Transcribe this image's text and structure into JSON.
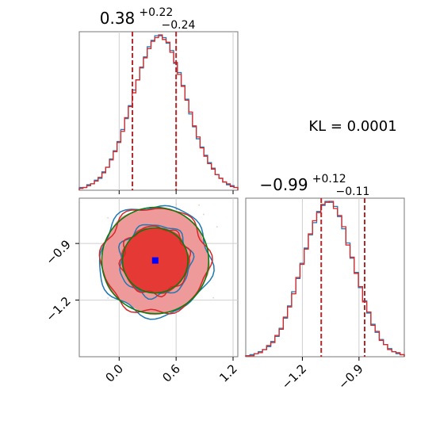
{
  "chart_data": {
    "type": "corner",
    "annotation": "KL = 0.0001",
    "params": [
      {
        "title_main": "0.38",
        "title_sup": "+0.22",
        "title_sub": "−0.24",
        "xlim": [
          -0.42,
          1.25
        ],
        "ticks": [
          0.0,
          0.6,
          1.2
        ],
        "tick_labels": [
          "0.0",
          "0.6",
          "1.2"
        ],
        "quantiles": [
          0.14,
          0.6
        ],
        "mean": 0.38,
        "sd": 0.23
      },
      {
        "title_main": "−0.99",
        "title_sup": "+0.12",
        "title_sub": "−0.11",
        "xlim": [
          -1.5,
          -0.66
        ],
        "ticks": [
          -1.2,
          -0.9
        ],
        "tick_labels": [
          "−1.2",
          "−0.9"
        ],
        "quantiles": [
          -1.1,
          -0.87
        ],
        "mean": -0.99,
        "sd": 0.115
      }
    ],
    "marginal_1": {
      "series": [
        {
          "name": "",
          "color": "#1f77b4",
          "values": [
            0.3,
            0.3,
            0.6,
            0.7,
            1.1,
            1.3,
            2.0,
            2.5,
            3.4,
            4.3,
            5.3,
            6.6,
            7.8,
            9.2,
            10.9,
            12.0,
            13.3,
            14.5,
            15.6,
            16.3,
            16.8,
            16.8,
            16.6,
            16.0,
            15.2,
            13.8,
            12.8,
            11.4,
            9.9,
            8.3,
            6.9,
            5.6,
            4.7,
            3.8,
            3.0,
            2.4,
            1.7,
            1.3,
            0.9,
            0.6,
            0.5,
            0.3
          ]
        },
        {
          "name": "",
          "color": "#d62728",
          "values": [
            0.2,
            0.3,
            0.5,
            0.7,
            1.0,
            1.4,
            1.9,
            2.5,
            3.3,
            4.2,
            5.2,
            6.4,
            7.9,
            9.1,
            10.6,
            12.0,
            13.4,
            14.4,
            15.4,
            16.2,
            16.6,
            16.9,
            16.4,
            16.1,
            15.0,
            13.9,
            12.6,
            11.3,
            9.8,
            8.5,
            7.0,
            5.8,
            4.6,
            3.7,
            2.9,
            2.3,
            1.7,
            1.3,
            0.9,
            0.7,
            0.4,
            0.3
          ]
        }
      ]
    },
    "marginal_2": {
      "series": [
        {
          "name": "",
          "color": "#1f77b4",
          "values": [
            0.1,
            0.2,
            0.3,
            0.5,
            0.7,
            1.0,
            1.5,
            2.0,
            2.8,
            3.8,
            5.0,
            6.4,
            7.7,
            9.2,
            10.7,
            12.0,
            13.2,
            14.3,
            14.9,
            15.3,
            15.2,
            14.8,
            13.8,
            12.6,
            11.2,
            9.7,
            8.3,
            6.8,
            5.5,
            4.3,
            3.2,
            2.4,
            1.7,
            1.2,
            0.8,
            0.5,
            0.3,
            0.2
          ]
        },
        {
          "name": "",
          "color": "#d62728",
          "values": [
            0.1,
            0.1,
            0.3,
            0.4,
            0.7,
            1.1,
            1.4,
            2.1,
            2.7,
            3.9,
            4.9,
            6.2,
            7.8,
            9.1,
            10.6,
            12.1,
            13.4,
            14.2,
            15.0,
            15.2,
            15.3,
            14.6,
            13.9,
            12.8,
            11.0,
            9.8,
            8.2,
            6.9,
            5.4,
            4.4,
            3.1,
            2.5,
            1.6,
            1.2,
            0.7,
            0.5,
            0.4,
            0.2
          ]
        }
      ]
    },
    "joint": {
      "point": {
        "x": 0.38,
        "y": -0.99,
        "color": "#0000ff"
      },
      "fill_colors": [
        "#ef9a9a",
        "#e53935"
      ],
      "contour_colors": {
        "blue": "#1f77b4",
        "red": "#d62728",
        "green": "#107a10"
      }
    },
    "colors": {
      "quantile_line": "#b2282b",
      "grid": "#cfcfcf",
      "frame": "#777777"
    }
  }
}
